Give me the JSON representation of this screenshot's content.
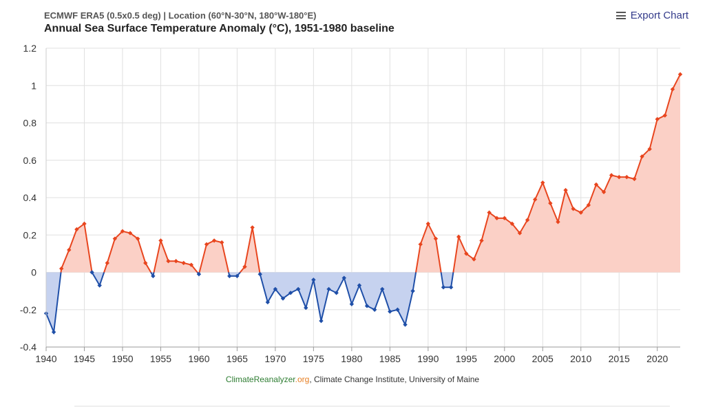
{
  "header": {
    "subtitle": "ECMWF ERA5 (0.5x0.5 deg) | Location (60°N-30°N, 180°W-180°E)",
    "title": "Annual Sea Surface Temperature Anomaly (°C), 1951-1980 baseline"
  },
  "export_button": {
    "label": "Export Chart",
    "icon": "hamburger-menu-icon"
  },
  "credits": {
    "site_a": "ClimateReanalyzer",
    "site_b": ".org",
    "rest": ", Climate Change Institute, University of Maine"
  },
  "colors": {
    "positive_line": "#e8451e",
    "positive_fill": "#fbd0c6",
    "negative_line": "#1f4fa8",
    "negative_fill": "#c6d2ef",
    "grid": "#e0e0e0",
    "export_text": "#333a8a"
  },
  "chart_data": {
    "type": "area",
    "title": "Annual Sea Surface Temperature Anomaly (°C), 1951-1980 baseline",
    "subtitle": "ECMWF ERA5 (0.5x0.5 deg) | Location (60°N-30°N, 180°W-180°E)",
    "xlabel": "",
    "ylabel": "",
    "xlim": [
      1940,
      2023
    ],
    "ylim": [
      -0.4,
      1.2
    ],
    "x_ticks": [
      1940,
      1945,
      1950,
      1955,
      1960,
      1965,
      1970,
      1975,
      1980,
      1985,
      1990,
      1995,
      2000,
      2005,
      2010,
      2015,
      2020
    ],
    "y_ticks": [
      -0.4,
      -0.2,
      0,
      0.2,
      0.4,
      0.6,
      0.8,
      1,
      1.2
    ],
    "y_tick_labels": [
      "-0.4",
      "-0.2",
      "0",
      "0.2",
      "0.4",
      "0.6",
      "0.8",
      "1",
      "1.2"
    ],
    "grid": true,
    "legend": "none",
    "threshold": 0,
    "series": [
      {
        "x": [
          1940,
          1941,
          1942,
          1943,
          1944,
          1945,
          1946,
          1947,
          1948,
          1949,
          1950,
          1951,
          1952,
          1953,
          1954,
          1955,
          1956,
          1957,
          1958,
          1959,
          1960,
          1961,
          1962,
          1963,
          1964,
          1965,
          1966,
          1967,
          1968,
          1969,
          1970,
          1971,
          1972,
          1973,
          1974,
          1975,
          1976,
          1977,
          1978,
          1979,
          1980,
          1981,
          1982,
          1983,
          1984,
          1985,
          1986,
          1987,
          1988,
          1989,
          1990,
          1991,
          1992,
          1993,
          1994,
          1995,
          1996,
          1997,
          1998,
          1999,
          2000,
          2001,
          2002,
          2003,
          2004,
          2005,
          2006,
          2007,
          2008,
          2009,
          2010,
          2011,
          2012,
          2013,
          2014,
          2015,
          2016,
          2017,
          2018,
          2019,
          2020,
          2021,
          2022,
          2023
        ],
        "values": [
          -0.22,
          -0.32,
          0.02,
          0.12,
          0.23,
          0.26,
          0.0,
          -0.07,
          0.05,
          0.18,
          0.22,
          0.21,
          0.18,
          0.05,
          -0.02,
          0.17,
          0.06,
          0.06,
          0.05,
          0.04,
          -0.01,
          0.15,
          0.17,
          0.16,
          -0.02,
          -0.02,
          0.03,
          0.24,
          -0.01,
          -0.16,
          -0.09,
          -0.14,
          -0.11,
          -0.09,
          -0.19,
          -0.04,
          -0.26,
          -0.09,
          -0.11,
          -0.03,
          -0.17,
          -0.07,
          -0.18,
          -0.2,
          -0.09,
          -0.21,
          -0.2,
          -0.28,
          -0.1,
          0.15,
          0.26,
          0.18,
          -0.08,
          -0.08,
          0.19,
          0.1,
          0.07,
          0.17,
          0.32,
          0.29,
          0.29,
          0.26,
          0.21,
          0.28,
          0.39,
          0.48,
          0.37,
          0.27,
          0.44,
          0.34,
          0.32,
          0.36,
          0.47,
          0.43,
          0.52,
          0.51,
          0.51,
          0.5,
          0.62,
          0.66,
          0.82,
          0.84,
          0.98,
          1.06
        ]
      }
    ]
  }
}
